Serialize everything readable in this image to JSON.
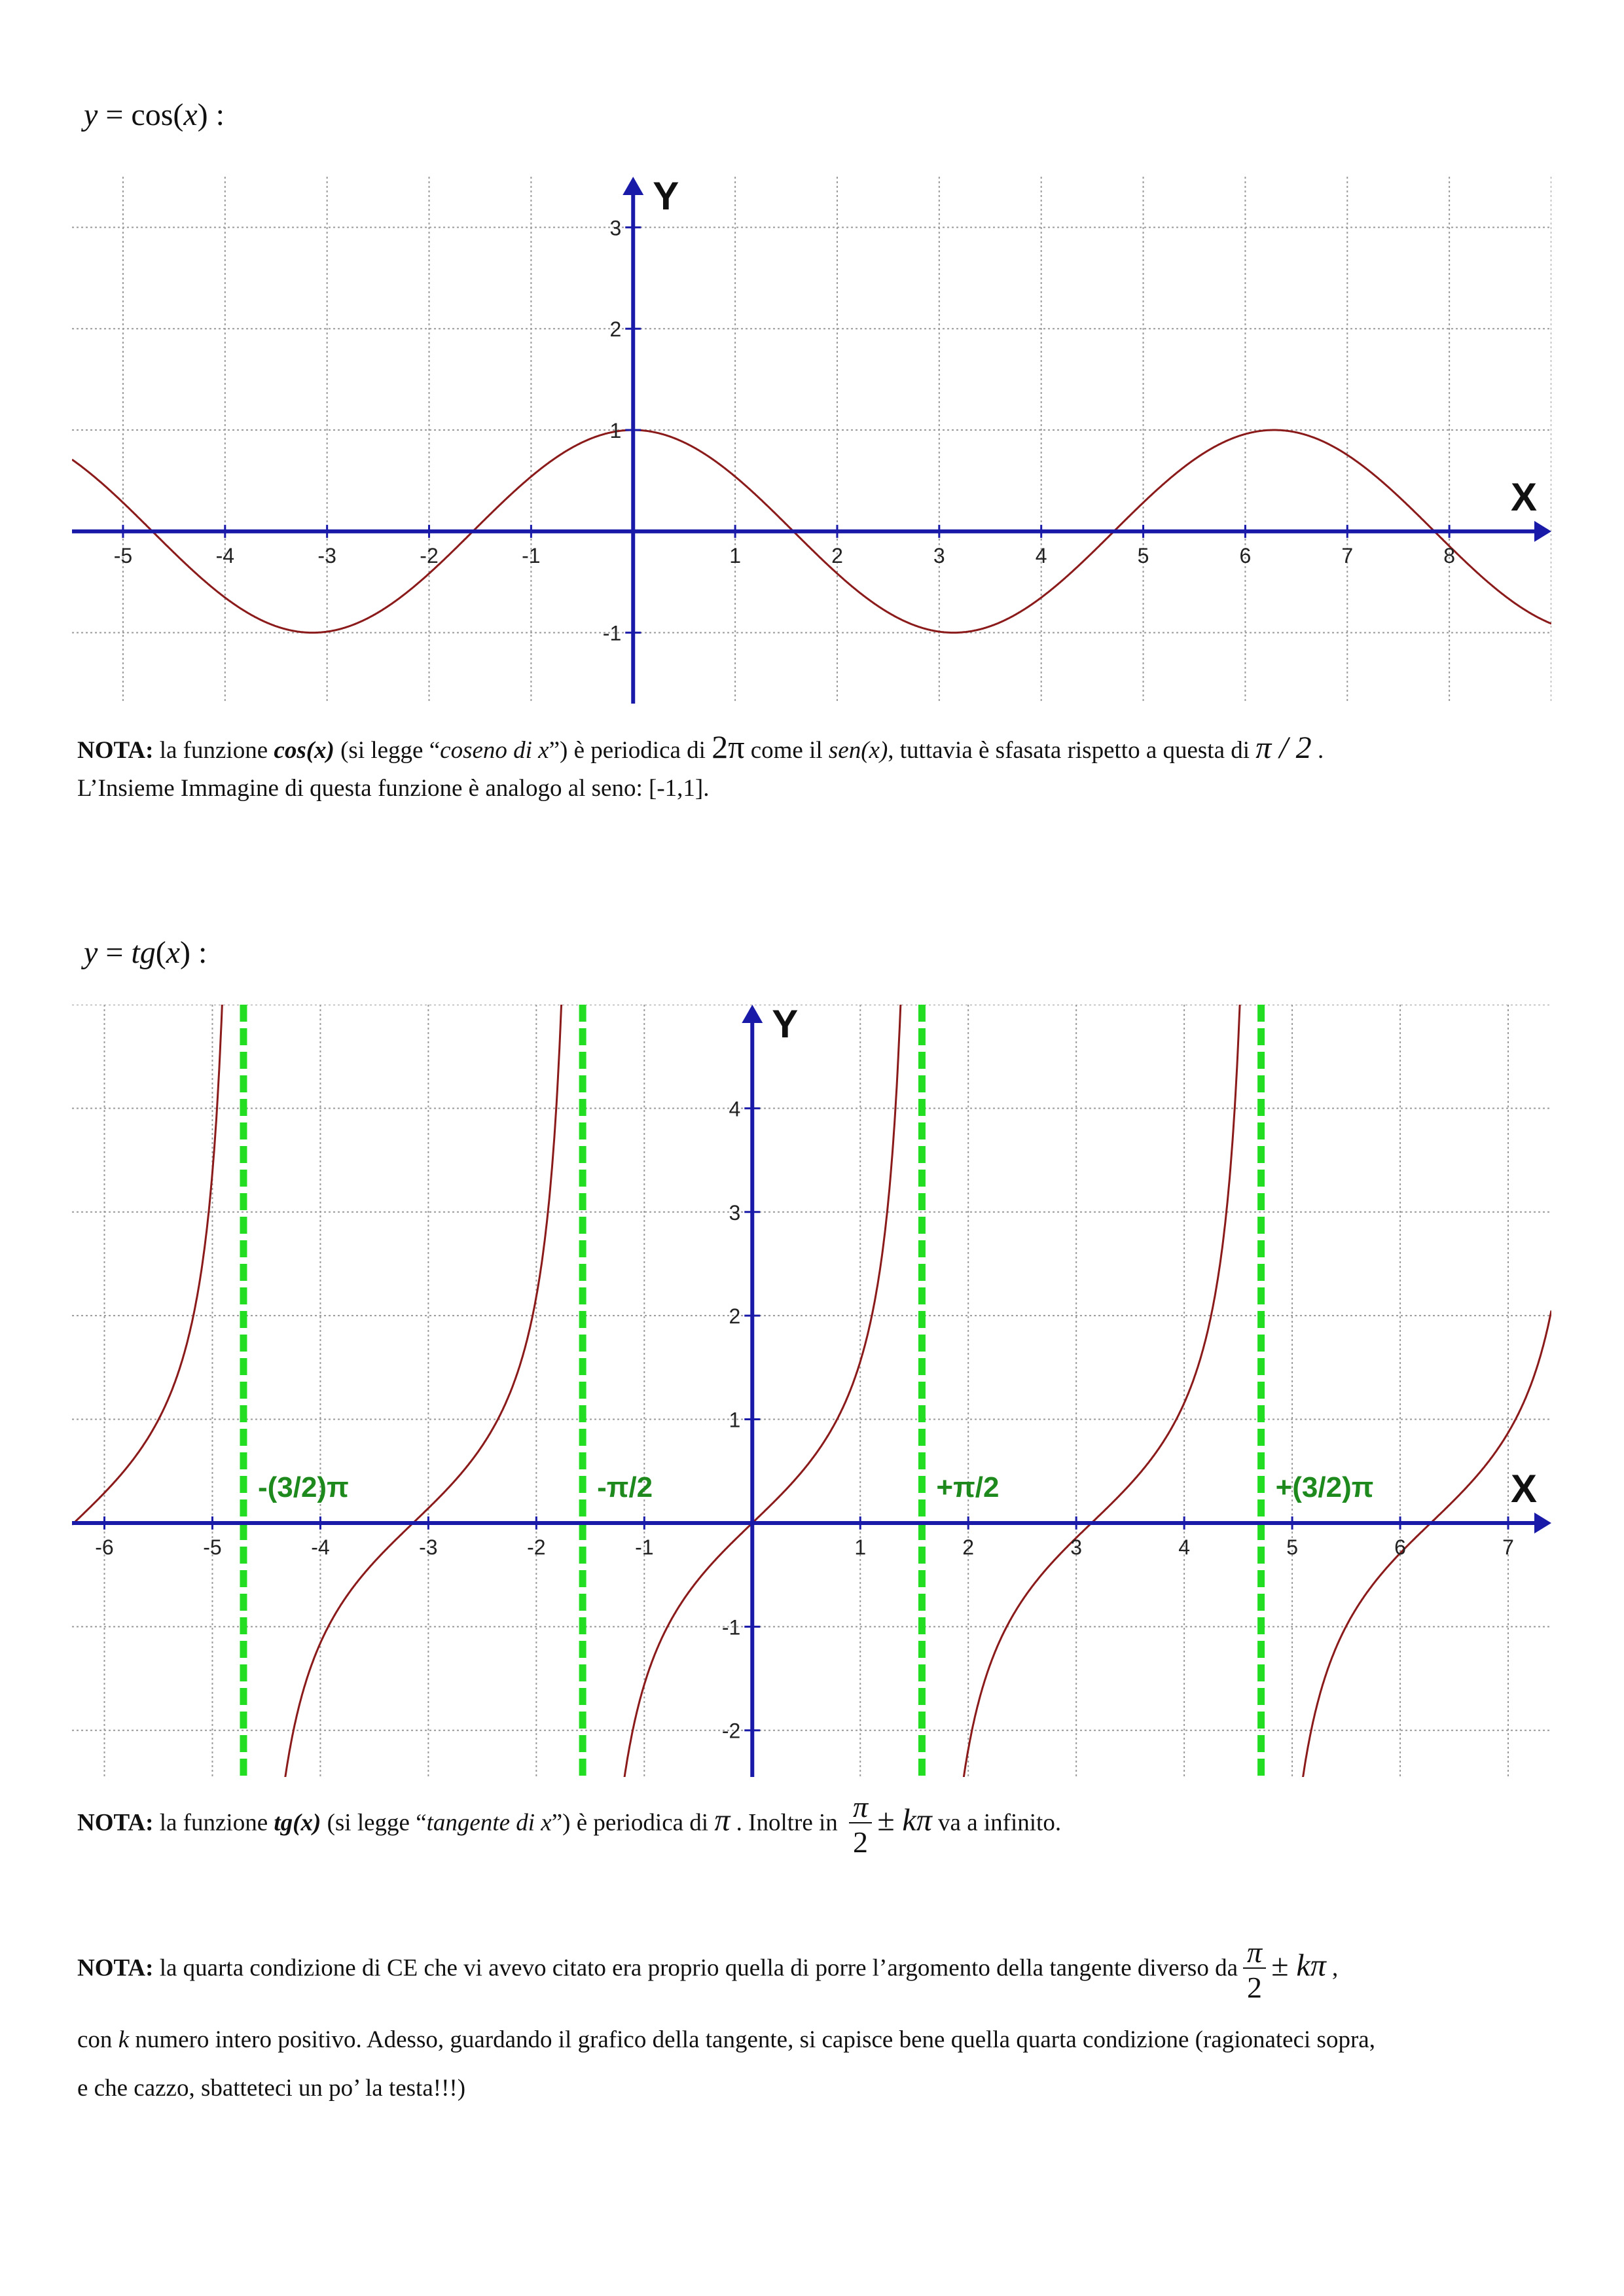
{
  "cos_section": {
    "title_pre": "y",
    "title_eq": " = cos(",
    "title_var": "x",
    "title_post": ") :",
    "chart_data": {
      "type": "line",
      "function": "cos(x)",
      "x_tick_labels": [
        "-5",
        "-4",
        "-3",
        "-2",
        "-1",
        "1",
        "2",
        "3",
        "4",
        "5",
        "6",
        "7",
        "8"
      ],
      "y_tick_labels": [
        "3",
        "2",
        "1",
        "-1"
      ],
      "xlim": [
        -5.5,
        9.0
      ],
      "ylim": [
        -1.7,
        3.5
      ],
      "x_axis_label": "X",
      "y_axis_label": "Y",
      "grid": true,
      "colors": {
        "axis": "#1a1aa8",
        "curve": "#8b1a1a",
        "grid": "#9a9a9a"
      }
    },
    "note": {
      "lead": "NOTA:",
      "t1": " la funzione ",
      "fname": "cos(x)",
      "t2": " (si legge “",
      "reading": "coseno di x",
      "t3": "”) è periodica di ",
      "period": "2π",
      "t4": " come il ",
      "sen": "sen(x)",
      "t5": ", tuttavia è sfasata rispetto a questa di ",
      "shift": "π / 2",
      "t6": " .",
      "line2": "L’Insieme Immagine di questa funzione è analogo al seno: [-1,1]."
    }
  },
  "tg_section": {
    "title_pre": "y",
    "title_eq": " = ",
    "title_fn": "tg",
    "title_open": "(",
    "title_var": "x",
    "title_post": ") :",
    "chart_data": {
      "type": "line",
      "function": "tan(x)",
      "x_tick_labels": [
        "-6",
        "-5",
        "-4",
        "-3",
        "-2",
        "-1",
        "1",
        "2",
        "3",
        "4",
        "5",
        "6",
        "7"
      ],
      "y_tick_labels": [
        "4",
        "3",
        "2",
        "1",
        "-1",
        "-2"
      ],
      "xlim": [
        -6.3,
        7.4
      ],
      "ylim": [
        -2.45,
        5.0
      ],
      "x_axis_label": "X",
      "y_axis_label": "Y",
      "asymptotes": [
        {
          "x": -4.712,
          "label": "-(3/2)π"
        },
        {
          "x": -1.571,
          "label": "-π/2"
        },
        {
          "x": 1.571,
          "label": "+π/2"
        },
        {
          "x": 4.712,
          "label": "+(3/2)π"
        }
      ],
      "grid": true,
      "colors": {
        "axis": "#1a1aa8",
        "curve": "#8b1a1a",
        "asymptote": "#22dd22",
        "asymptote_label": "#1e8a1e",
        "grid": "#9a9a9a"
      }
    },
    "note": {
      "lead": "NOTA:",
      "t1": " la funzione ",
      "fname": "tg(x)",
      "t2": " (si legge “",
      "reading": "tangente di x",
      "t3": "”) è periodica di ",
      "period": "π",
      "t4": " . Inoltre in ",
      "frac_num": "π",
      "frac_den": "2",
      "pm": "± kπ",
      "t5": "  va a infinito."
    }
  },
  "final_note": {
    "lead": "NOTA:",
    "text1": " la quarta condizione di CE che vi avevo citato era proprio quella di porre l’argomento della tangente diverso da",
    "frac_num": "π",
    "frac_den": "2",
    "pm": "± kπ",
    "comma": " ,",
    "text2a": "con ",
    "k": "k",
    "text2b": " numero intero positivo. Adesso, guardando il grafico della tangente, si capisce bene quella quarta condizione (ragionateci sopra,",
    "text3": "e che cazzo, sbatteteci un po’ la testa!!!)"
  }
}
